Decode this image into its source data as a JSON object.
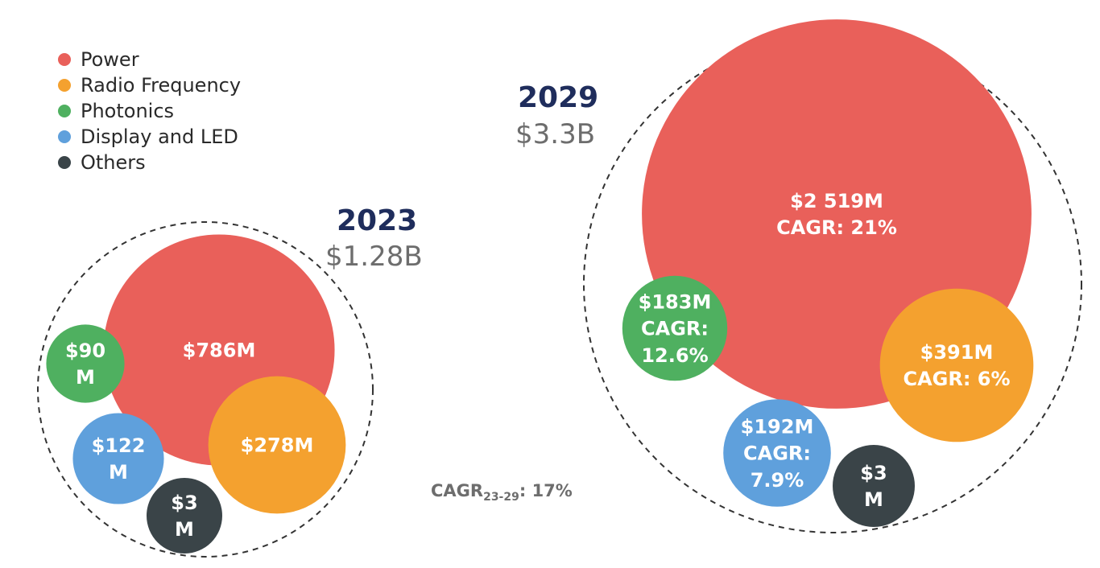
{
  "legend": [
    {
      "label": "Power",
      "color": "#e9605a"
    },
    {
      "label": "Radio Frequency",
      "color": "#f4a12f"
    },
    {
      "label": "Photonics",
      "color": "#4fb060"
    },
    {
      "label": "Display and LED",
      "color": "#5fa0dc"
    },
    {
      "label": "Others",
      "color": "#3a4448"
    }
  ],
  "overall_cagr": {
    "prefix": "CAGR",
    "subscript": "23-29",
    "suffix": ": 17%"
  },
  "chart_data": {
    "type": "bubble",
    "unit": "$M",
    "groups": [
      {
        "year": "2023",
        "total": "$1.28B",
        "segments": [
          {
            "name": "Power",
            "value": 786,
            "label_lines": [
              "$786M"
            ]
          },
          {
            "name": "Radio Frequency",
            "value": 278,
            "label_lines": [
              "$278M"
            ]
          },
          {
            "name": "Photonics",
            "value": 90,
            "label_lines": [
              "$90",
              "M"
            ]
          },
          {
            "name": "Display and LED",
            "value": 122,
            "label_lines": [
              "$122",
              "M"
            ]
          },
          {
            "name": "Others",
            "value": 3,
            "label_lines": [
              "$3",
              "M"
            ]
          }
        ]
      },
      {
        "year": "2029",
        "total": "$3.3B",
        "segments": [
          {
            "name": "Power",
            "value": 2519,
            "cagr": "21%",
            "label_lines": [
              "$2 519M",
              "CAGR: 21%"
            ]
          },
          {
            "name": "Radio Frequency",
            "value": 391,
            "cagr": "6%",
            "label_lines": [
              "$391M",
              "CAGR: 6%"
            ]
          },
          {
            "name": "Photonics",
            "value": 183,
            "cagr": "12.6%",
            "label_lines": [
              "$183M",
              "CAGR:",
              "12.6%"
            ]
          },
          {
            "name": "Display and LED",
            "value": 192,
            "cagr": "7.9%",
            "label_lines": [
              "$192M",
              "CAGR:",
              "7.9%"
            ]
          },
          {
            "name": "Others",
            "value": 3,
            "label_lines": [
              "$3",
              "M"
            ]
          }
        ]
      }
    ]
  }
}
